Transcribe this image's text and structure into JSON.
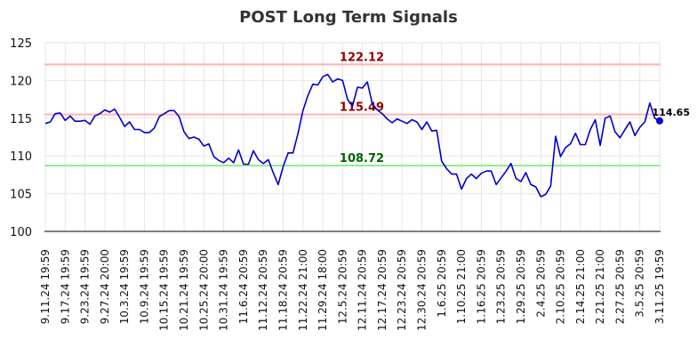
{
  "chart_data": {
    "type": "line",
    "title": "POST Long Term Signals",
    "xlabel": "",
    "ylabel": "",
    "ylim": [
      100,
      125
    ],
    "yticks": [
      100,
      105,
      110,
      115,
      120,
      125
    ],
    "grid": true,
    "line_color": "#0000cc",
    "x_tick_labels": [
      "9.11.24 19:59",
      "9.17.24 19:59",
      "9.23.24 19:59",
      "9.27.24 20:00",
      "10.3.24 19:59",
      "10.9.24 19:59",
      "10.15.24 19:59",
      "10.21.24 19:59",
      "10.25.24 20:00",
      "10.31.24 19:59",
      "11.6.24 20:59",
      "11.12.24 20:59",
      "11.18.24 20:59",
      "11.22.24 21:00",
      "11.29.24 18:00",
      "12.5.24 20:59",
      "12.11.24 20:59",
      "12.17.24 20:59",
      "12.23.24 20:59",
      "12.30.24 20:59",
      "1.6.25 20:59",
      "1.10.25 21:00",
      "1.16.25 20:59",
      "1.23.25 20:59",
      "1.29.25 20:59",
      "2.4.25 20:59",
      "2.10.25 20:59",
      "2.14.25 21:00",
      "2.21.25 21:00",
      "2.27.25 20:59",
      "3.5.25 20:59",
      "3.11.25 19:59"
    ],
    "x_tick_index": [
      0,
      4,
      8,
      12,
      16,
      20,
      24,
      28,
      32,
      36,
      40,
      44,
      48,
      52,
      56,
      60,
      64,
      68,
      72,
      76,
      80,
      84,
      88,
      92,
      96,
      100,
      104,
      108,
      112,
      116,
      120,
      124
    ],
    "reference_lines": [
      {
        "value": 122.12,
        "label": "122.12",
        "line_color": "#ffb3b3",
        "label_color": "#8b0000"
      },
      {
        "value": 115.49,
        "label": "115.49",
        "line_color": "#ffb3b3",
        "label_color": "#8b0000"
      },
      {
        "value": 108.72,
        "label": "108.72",
        "line_color": "#90ee90",
        "label_color": "#006400"
      }
    ],
    "last_value": {
      "value": 114.65,
      "label": "114.65"
    },
    "values": [
      114.3,
      114.5,
      115.6,
      115.7,
      114.7,
      115.3,
      114.6,
      114.6,
      114.7,
      114.2,
      115.3,
      115.6,
      116.1,
      115.8,
      116.2,
      115.1,
      113.9,
      114.5,
      113.5,
      113.5,
      113.1,
      113.1,
      113.7,
      115.2,
      115.6,
      116.0,
      116.0,
      115.2,
      113.2,
      112.3,
      112.5,
      112.2,
      111.3,
      111.6,
      109.9,
      109.4,
      109.1,
      109.7,
      109.1,
      110.8,
      108.9,
      108.9,
      110.7,
      109.5,
      109.0,
      109.5,
      107.8,
      106.2,
      108.6,
      110.4,
      110.4,
      113.0,
      116.0,
      118.0,
      119.5,
      119.4,
      120.5,
      120.8,
      119.8,
      120.2,
      120.0,
      117.5,
      116.6,
      119.1,
      119.0,
      119.8,
      116.9,
      116.1,
      115.6,
      114.9,
      114.4,
      114.9,
      114.6,
      114.3,
      114.8,
      114.5,
      113.5,
      114.5,
      113.3,
      113.4,
      109.3,
      108.3,
      107.6,
      107.6,
      105.6,
      107.0,
      107.6,
      107.0,
      107.7,
      108.0,
      108.0,
      106.2,
      107.1,
      108.0,
      109.0,
      107.0,
      106.6,
      107.8,
      106.2,
      105.9,
      104.6,
      104.9,
      106.0,
      112.6,
      109.9,
      111.1,
      111.6,
      113.0,
      111.5,
      111.5,
      113.5,
      114.8,
      111.4,
      115.0,
      115.3,
      113.2,
      112.4,
      113.5,
      114.5,
      112.7,
      113.8,
      114.5,
      117.0,
      115.0,
      114.65
    ]
  }
}
